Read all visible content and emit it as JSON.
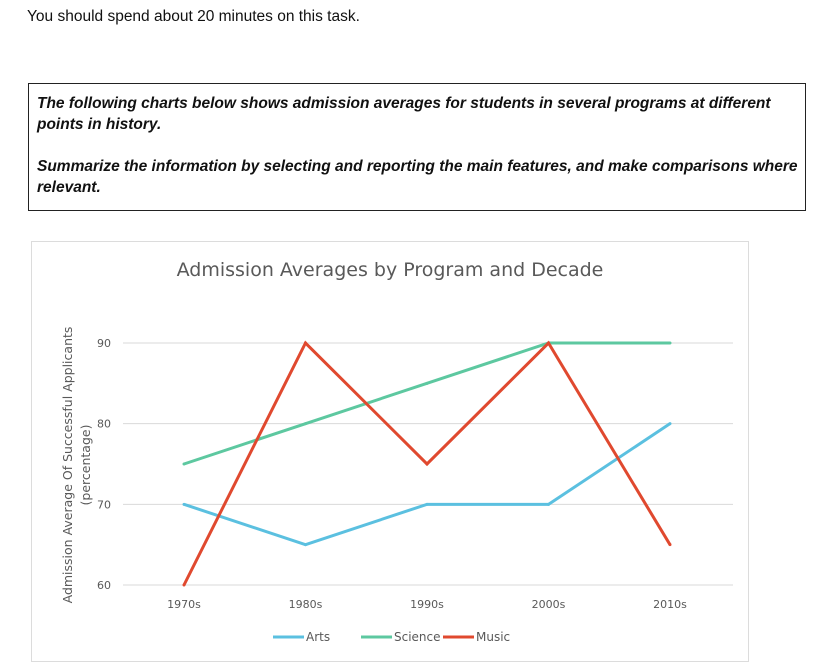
{
  "header": {
    "instruction": "You should spend about 20 minutes on this task."
  },
  "task": {
    "prompt": "The following charts below shows admission averages for students in several programs at different points in history.",
    "directive": "Summarize the information by selecting and reporting the main features, and make comparisons where relevant."
  },
  "chart_data": {
    "type": "line",
    "title": "Admission Averages by Program and Decade",
    "xlabel": "",
    "ylabel": "Admission Average Of Successful Applicants",
    "ylabel_sub": "(percentage)",
    "categories": [
      "1970s",
      "1980s",
      "1990s",
      "2000s",
      "2010s"
    ],
    "ylim": [
      60,
      90
    ],
    "yticks": [
      60,
      70,
      80,
      90
    ],
    "grid": true,
    "legend_position": "bottom",
    "series": [
      {
        "name": "Arts",
        "color": "#5bc0e0",
        "values": [
          70,
          65,
          70,
          70,
          80
        ]
      },
      {
        "name": "Science",
        "color": "#5dc8a0",
        "values": [
          75,
          80,
          85,
          90,
          90
        ]
      },
      {
        "name": "Music",
        "color": "#e0492f",
        "values": [
          60,
          90,
          75,
          90,
          65
        ]
      }
    ]
  }
}
